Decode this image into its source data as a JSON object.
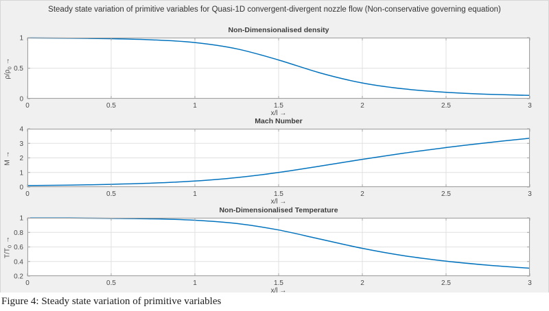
{
  "figure": {
    "title": "Steady state variation of primitive variables for Quasi-1D convergent-divergent nozzle flow (Non-conservative governing equation)",
    "caption": "Figure 4: Steady state variation of primitive variables",
    "background": "#f0f0f0",
    "plot_background": "#ffffff"
  },
  "colors": {
    "line": "#0072BD",
    "grid": "#e0e0e0",
    "box": "#a0a0a0",
    "tick_text": "#4a4a4a"
  },
  "chart_data": [
    {
      "type": "line",
      "title": "Non-Dimensionalised density",
      "xlabel": "x/l →",
      "ylabel_main": "ρ/ρ",
      "ylabel_sub": "0",
      "ylabel_suffix": " →",
      "xlim": [
        0,
        3
      ],
      "ylim": [
        0,
        1
      ],
      "xticks": [
        0,
        0.5,
        1,
        1.5,
        2,
        2.5,
        3
      ],
      "yticks": [
        0,
        0.5,
        1
      ],
      "grid": true,
      "x": [
        0,
        0.25,
        0.5,
        0.75,
        1.0,
        1.25,
        1.5,
        1.75,
        2.0,
        2.25,
        2.5,
        2.75,
        3.0
      ],
      "y": [
        0.995,
        0.991,
        0.983,
        0.964,
        0.92,
        0.817,
        0.634,
        0.42,
        0.257,
        0.159,
        0.104,
        0.072,
        0.053
      ]
    },
    {
      "type": "line",
      "title": "Mach Number",
      "xlabel": "x/l →",
      "ylabel_main": "M",
      "ylabel_sub": "",
      "ylabel_suffix": " →",
      "xlim": [
        0,
        3
      ],
      "ylim": [
        0,
        4
      ],
      "xticks": [
        0,
        0.5,
        1,
        1.5,
        2,
        2.5,
        3
      ],
      "yticks": [
        0,
        1,
        2,
        3,
        4
      ],
      "grid": true,
      "x": [
        0,
        0.25,
        0.5,
        0.75,
        1.0,
        1.25,
        1.5,
        1.75,
        2.0,
        2.25,
        2.5,
        2.75,
        3.0
      ],
      "y": [
        0.098,
        0.132,
        0.185,
        0.27,
        0.411,
        0.648,
        1.0,
        1.44,
        1.9,
        2.33,
        2.71,
        3.05,
        3.35
      ]
    },
    {
      "type": "line",
      "title": "Non-Dimensionalised Temperature",
      "xlabel": "x/l →",
      "ylabel_main": "T/T",
      "ylabel_sub": "0",
      "ylabel_suffix": " →",
      "xlim": [
        0,
        3
      ],
      "ylim": [
        0.2,
        1
      ],
      "xticks": [
        0,
        0.5,
        1,
        1.5,
        2,
        2.5,
        3
      ],
      "yticks": [
        0.2,
        0.4,
        0.6,
        0.8,
        1
      ],
      "grid": true,
      "x": [
        0,
        0.25,
        0.5,
        0.75,
        1.0,
        1.25,
        1.5,
        1.75,
        2.0,
        2.25,
        2.5,
        2.75,
        3.0
      ],
      "y": [
        0.998,
        0.997,
        0.993,
        0.986,
        0.967,
        0.922,
        0.833,
        0.707,
        0.581,
        0.479,
        0.405,
        0.35,
        0.308
      ]
    }
  ]
}
